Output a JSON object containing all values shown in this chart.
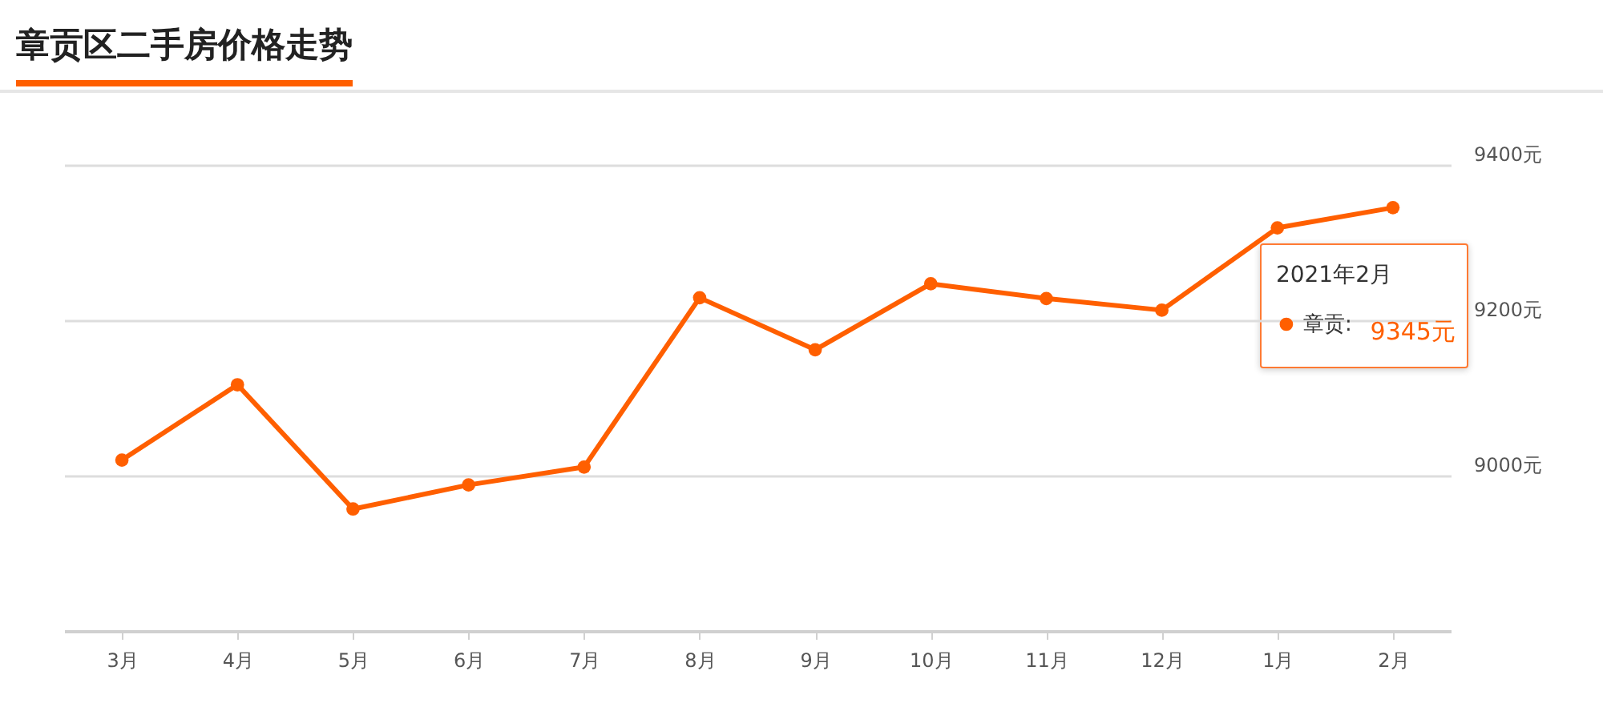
{
  "chart_data": {
    "type": "line",
    "title": "章贡区二手房价格走势",
    "categories": [
      "3月",
      "4月",
      "5月",
      "6月",
      "7月",
      "8月",
      "9月",
      "10月",
      "11月",
      "12月",
      "1月",
      "2月"
    ],
    "series": [
      {
        "name": "章贡:",
        "color": "#ff5f00",
        "values": [
          9020,
          9117,
          8957,
          8988,
          9011,
          9229,
          9162,
          9247,
          9228,
          9213,
          9319,
          9345
        ]
      }
    ],
    "ylim": [
      8800,
      9400
    ],
    "yticks": [
      {
        "value": 9000,
        "label": "9000元"
      },
      {
        "value": 9200,
        "label": "9200元"
      },
      {
        "value": 9400,
        "label": "9400元"
      }
    ],
    "grid": "y",
    "marker": "circle",
    "legend": "top right",
    "annotations": [
      "2021年2月",
      "9345元"
    ]
  }
}
